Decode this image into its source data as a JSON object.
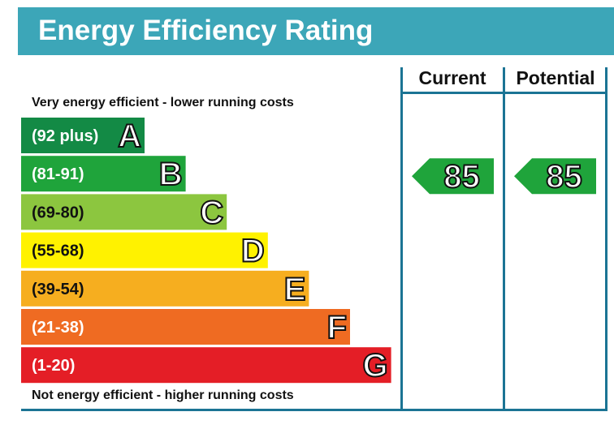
{
  "header": {
    "title": "Energy Efficiency Rating"
  },
  "columns": {
    "current": "Current",
    "potential": "Potential"
  },
  "scale": {
    "top_text": "Very energy efficient - lower running costs",
    "bottom_text": "Not energy efficient - higher running costs"
  },
  "chart_data": {
    "type": "bar",
    "title": "Energy Efficiency Rating",
    "bands": [
      {
        "range": "(92 plus)",
        "letter": "A",
        "color": "#138a45"
      },
      {
        "range": "(81-91)",
        "letter": "B",
        "color": "#1fa43b"
      },
      {
        "range": "(69-80)",
        "letter": "C",
        "color": "#8cc63f"
      },
      {
        "range": "(55-68)",
        "letter": "D",
        "color": "#fff200"
      },
      {
        "range": "(39-54)",
        "letter": "E",
        "color": "#f6ae1f"
      },
      {
        "range": "(21-38)",
        "letter": "F",
        "color": "#ef6b22"
      },
      {
        "range": "(1-20)",
        "letter": "G",
        "color": "#e41e26"
      }
    ],
    "current": {
      "value": 85,
      "band": "B",
      "color": "#1fa43b"
    },
    "potential": {
      "value": 85,
      "band": "B",
      "color": "#1fa43b"
    }
  },
  "colors": {
    "header": "#3ca6b8",
    "frame": "#1b7494"
  }
}
